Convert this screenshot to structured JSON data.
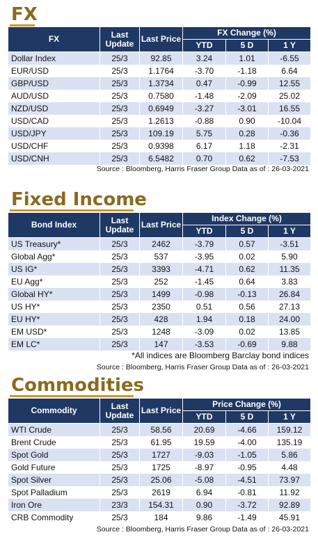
{
  "fx": {
    "title": "FX",
    "headers": {
      "name": "FX",
      "last_update": "Last Update",
      "last_price": "Last Price",
      "group": "FX Change (%)",
      "ytd": "YTD",
      "d5": "5 D",
      "y1": "1 Y"
    },
    "rows": [
      {
        "name": "Dollar Index",
        "update": "25/3",
        "price": "92.85",
        "ytd": "3.24",
        "d5": "1.01",
        "y1": "-6.55"
      },
      {
        "name": "EUR/USD",
        "update": "25/3",
        "price": "1.1764",
        "ytd": "-3.70",
        "d5": "-1.18",
        "y1": "6.64"
      },
      {
        "name": "GBP/USD",
        "update": "25/3",
        "price": "1.3734",
        "ytd": "0.47",
        "d5": "-0.99",
        "y1": "12.55"
      },
      {
        "name": "AUD/USD",
        "update": "25/3",
        "price": "0.7580",
        "ytd": "-1.48",
        "d5": "-2.09",
        "y1": "25.02"
      },
      {
        "name": "NZD/USD",
        "update": "25/3",
        "price": "0.6949",
        "ytd": "-3.27",
        "d5": "-3.01",
        "y1": "16.55"
      },
      {
        "name": "USD/CAD",
        "update": "25/3",
        "price": "1.2613",
        "ytd": "-0.88",
        "d5": "0.90",
        "y1": "-10.04"
      },
      {
        "name": "USD/JPY",
        "update": "25/3",
        "price": "109.19",
        "ytd": "5.75",
        "d5": "0.28",
        "y1": "-0.36"
      },
      {
        "name": "USD/CHF",
        "update": "25/3",
        "price": "0.9398",
        "ytd": "6.17",
        "d5": "1.18",
        "y1": "-2.31"
      },
      {
        "name": "USD/CNH",
        "update": "25/3",
        "price": "6.5482",
        "ytd": "0.70",
        "d5": "0.62",
        "y1": "-7.53"
      }
    ],
    "source": "Source : Bloomberg, Harris Fraser Group Data as of : 26-03-2021"
  },
  "fixed_income": {
    "title": "Fixed Income",
    "headers": {
      "name": "Bond Index",
      "last_update": "Last Update",
      "last_price": "Last Price",
      "group": "Index Change (%)",
      "ytd": "YTD",
      "d5": "5 D",
      "y1": "1 Y"
    },
    "rows": [
      {
        "name": "US Treasury*",
        "update": "25/3",
        "price": "2462",
        "ytd": "-3.79",
        "d5": "0.57",
        "y1": "-3.51"
      },
      {
        "name": "Global Agg*",
        "update": "25/3",
        "price": "537",
        "ytd": "-3.95",
        "d5": "0.02",
        "y1": "5.90"
      },
      {
        "name": "US IG*",
        "update": "25/3",
        "price": "3393",
        "ytd": "-4.71",
        "d5": "0.62",
        "y1": "11.35"
      },
      {
        "name": "EU Agg*",
        "update": "25/3",
        "price": "252",
        "ytd": "-1.45",
        "d5": "0.64",
        "y1": "3.83"
      },
      {
        "name": "Global HY*",
        "update": "25/3",
        "price": "1499",
        "ytd": "-0.98",
        "d5": "-0.13",
        "y1": "26.84"
      },
      {
        "name": "US HY*",
        "update": "25/3",
        "price": "2350",
        "ytd": "0.51",
        "d5": "0.56",
        "y1": "27.13"
      },
      {
        "name": "EU HY*",
        "update": "25/3",
        "price": "428",
        "ytd": "1.94",
        "d5": "0.18",
        "y1": "24.00"
      },
      {
        "name": "EM USD*",
        "update": "25/3",
        "price": "1248",
        "ytd": "-3.09",
        "d5": "0.02",
        "y1": "13.85"
      },
      {
        "name": "EM LC*",
        "update": "25/3",
        "price": "147",
        "ytd": "-3.53",
        "d5": "-0.69",
        "y1": "9.88"
      }
    ],
    "note": "*All indices are Bloomberg Barclay bond indices",
    "source": "Source : Bloomberg, Harris Fraser Group Data as of : 26-03-2021"
  },
  "commodities": {
    "title": "Commodities",
    "headers": {
      "name": "Commodity",
      "last_update": "Last Update",
      "last_price": "Last Price",
      "group": "Price Change (%)",
      "ytd": "YTD",
      "d5": "5 D",
      "y1": "1 Y"
    },
    "rows": [
      {
        "name": "WTI Crude",
        "update": "25/3",
        "price": "58.56",
        "ytd": "20.69",
        "d5": "-4.66",
        "y1": "159.12"
      },
      {
        "name": "Brent Crude",
        "update": "25/3",
        "price": "61.95",
        "ytd": "19.59",
        "d5": "-4.00",
        "y1": "135.19"
      },
      {
        "name": "Spot Gold",
        "update": "25/3",
        "price": "1727",
        "ytd": "-9.03",
        "d5": "-1.05",
        "y1": "5.86"
      },
      {
        "name": "Gold Future",
        "update": "25/3",
        "price": "1725",
        "ytd": "-8.97",
        "d5": "-0.95",
        "y1": "4.48"
      },
      {
        "name": "Spot Silver",
        "update": "25/3",
        "price": "25.06",
        "ytd": "-5.08",
        "d5": "-4.51",
        "y1": "73.97"
      },
      {
        "name": "Spot Palladium",
        "update": "25/3",
        "price": "2619",
        "ytd": "6.94",
        "d5": "-0.81",
        "y1": "11.92"
      },
      {
        "name": "Iron Ore",
        "update": "23/3",
        "price": "154.31",
        "ytd": "0.90",
        "d5": "-3.72",
        "y1": "92.89"
      },
      {
        "name": "CRB Commodity",
        "update": "25/3",
        "price": "184",
        "ytd": "9.86",
        "d5": "-1.49",
        "y1": "45.91"
      }
    ],
    "source": "Source : Bloomberg, Harris Fraser Group Data as of : 26-03-2021"
  },
  "colors": {
    "title_text": "#8a6a1f",
    "title_underline": "#c99a2e",
    "header_bg": "#1f3864",
    "stripe_bg": "#d9e1f2"
  }
}
